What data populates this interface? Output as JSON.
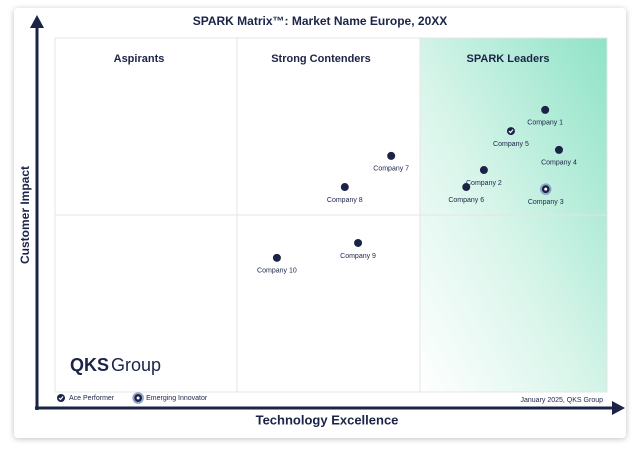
{
  "chart_data": {
    "type": "scatter",
    "title": "SPARK Matrix™: Market Name Europe, 20XX",
    "x_label": "Technology Excellence",
    "y_label": "Customer Impact",
    "quadrants": [
      "Aspirants",
      "Strong Contenders",
      "SPARK Leaders"
    ],
    "xlim": [
      0,
      100
    ],
    "ylim": [
      0,
      100
    ],
    "color": "#1b2447",
    "points": [
      {
        "name": "Company 1",
        "x": 88.8,
        "y": 79.7
      },
      {
        "name": "Company 5",
        "x": 82.6,
        "y": 73.7,
        "marker": "ace"
      },
      {
        "name": "Company 4",
        "x": 91.3,
        "y": 68.4
      },
      {
        "name": "Company 2",
        "x": 77.7,
        "y": 62.7
      },
      {
        "name": "Company 3",
        "x": 88.9,
        "y": 57.3,
        "marker": "innovator"
      },
      {
        "name": "Company 6",
        "x": 74.5,
        "y": 57.9
      },
      {
        "name": "Company 7",
        "x": 60.9,
        "y": 66.7
      },
      {
        "name": "Company 8",
        "x": 52.5,
        "y": 57.9
      },
      {
        "name": "Company 9",
        "x": 54.9,
        "y": 42.1
      },
      {
        "name": "Company 10",
        "x": 40.2,
        "y": 37.9
      }
    ],
    "legend": [
      {
        "name": "Ace Performer",
        "marker": "ace"
      },
      {
        "name": "Emerging Innovator",
        "marker": "innovator"
      }
    ],
    "logo": [
      "QKS",
      "Group"
    ],
    "footer": "January 2025, QKS Group"
  }
}
